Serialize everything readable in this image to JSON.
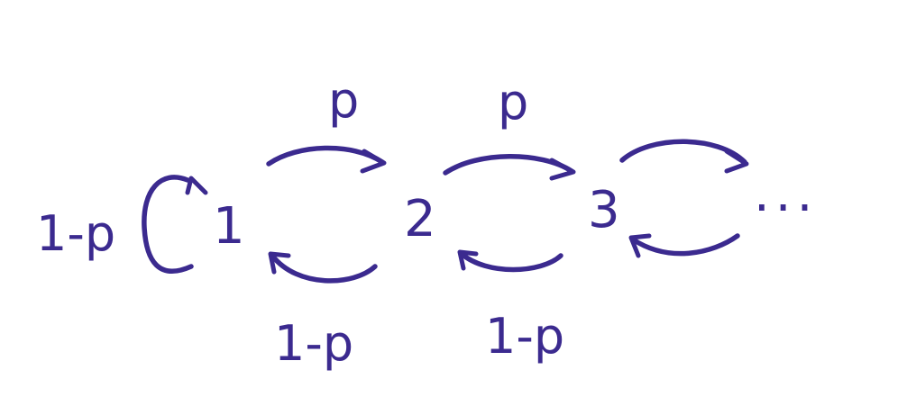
{
  "diagram": {
    "ink_color": "#3b2a8f",
    "background_color": "#ffffff",
    "states": [
      {
        "id": "s1",
        "label": "1"
      },
      {
        "id": "s2",
        "label": "2"
      },
      {
        "id": "s3",
        "label": "3"
      }
    ],
    "continuation": "...",
    "transitions": [
      {
        "id": "self-1",
        "from": "1",
        "to": "1",
        "label": "1-p"
      },
      {
        "id": "fwd-1-2",
        "from": "1",
        "to": "2",
        "label": "p"
      },
      {
        "id": "fwd-2-3",
        "from": "2",
        "to": "3",
        "label": "p"
      },
      {
        "id": "fwd-3-next",
        "from": "3",
        "to": "...",
        "label": ""
      },
      {
        "id": "back-2-1",
        "from": "2",
        "to": "1",
        "label": "1-p"
      },
      {
        "id": "back-3-2",
        "from": "3",
        "to": "2",
        "label": "1-p"
      },
      {
        "id": "back-next-3",
        "from": "...",
        "to": "3",
        "label": ""
      }
    ]
  }
}
